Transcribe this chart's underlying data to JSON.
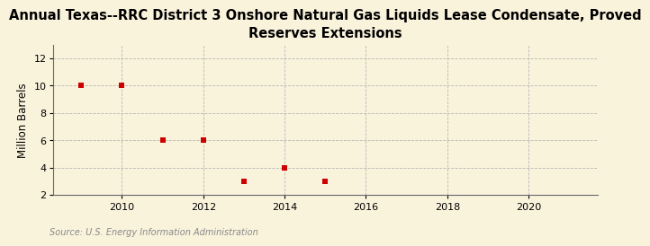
{
  "title": "Annual Texas--RRC District 3 Onshore Natural Gas Liquids Lease Condensate, Proved\nReserves Extensions",
  "ylabel": "Million Barrels",
  "source": "Source: U.S. Energy Information Administration",
  "x_data": [
    2009,
    2010,
    2011,
    2012,
    2013,
    2014,
    2015
  ],
  "y_data": [
    10,
    10,
    6,
    6,
    3,
    4,
    3
  ],
  "marker_color": "#cc0000",
  "marker": "s",
  "marker_size": 16,
  "xlim": [
    2008.3,
    2021.7
  ],
  "ylim": [
    2,
    13
  ],
  "yticks": [
    2,
    4,
    6,
    8,
    10,
    12
  ],
  "xticks": [
    2010,
    2012,
    2014,
    2016,
    2018,
    2020
  ],
  "bg_color": "#faf3dc",
  "grid_color": "#b0b0b0",
  "title_fontsize": 10.5,
  "label_fontsize": 8.5,
  "tick_fontsize": 8,
  "source_fontsize": 7,
  "source_color": "#888888"
}
